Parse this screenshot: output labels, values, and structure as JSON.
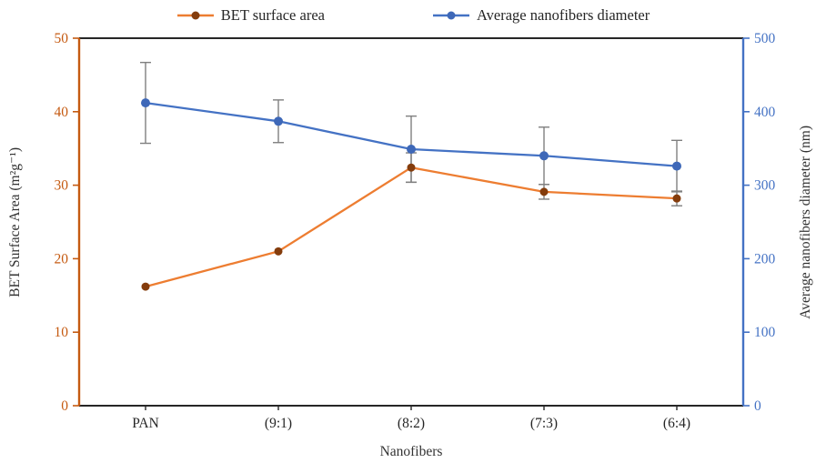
{
  "figure": {
    "background": "#FFFFFF"
  },
  "chart_data": {
    "type": "line",
    "title": "",
    "xlabel": "Nanofibers",
    "categories": [
      "PAN",
      "(9:1)",
      "(8:2)",
      "(7:3)",
      "(6:4)"
    ],
    "axes": {
      "left": {
        "label": "BET Surface Area (m²g⁻¹)",
        "min": 0,
        "max": 50,
        "step": 10,
        "color": "#C55A11"
      },
      "right": {
        "label": "Average nanofibers diameter (nm)",
        "min": 0,
        "max": 500,
        "step": 100,
        "color": "#4472C4"
      }
    },
    "series": [
      {
        "name": "BET surface area",
        "axis": "left",
        "line_color": "#ED7D31",
        "marker_color": "#843C0C",
        "values": [
          16.2,
          21.0,
          32.4,
          29.1,
          28.2
        ],
        "errors": [
          0,
          0,
          2,
          1,
          1
        ]
      },
      {
        "name": "Average nanofibers diameter",
        "axis": "right",
        "line_color": "#4472C4",
        "marker_color": "#3E68B8",
        "values": [
          412,
          387,
          349,
          340,
          326
        ],
        "errors": [
          55,
          29,
          45,
          39,
          35
        ]
      }
    ],
    "error_bar_color": "#7F7F7F",
    "frame_color": "#262626",
    "tick_label_color_x": "#262626",
    "grid": false,
    "legend_position": "top"
  }
}
